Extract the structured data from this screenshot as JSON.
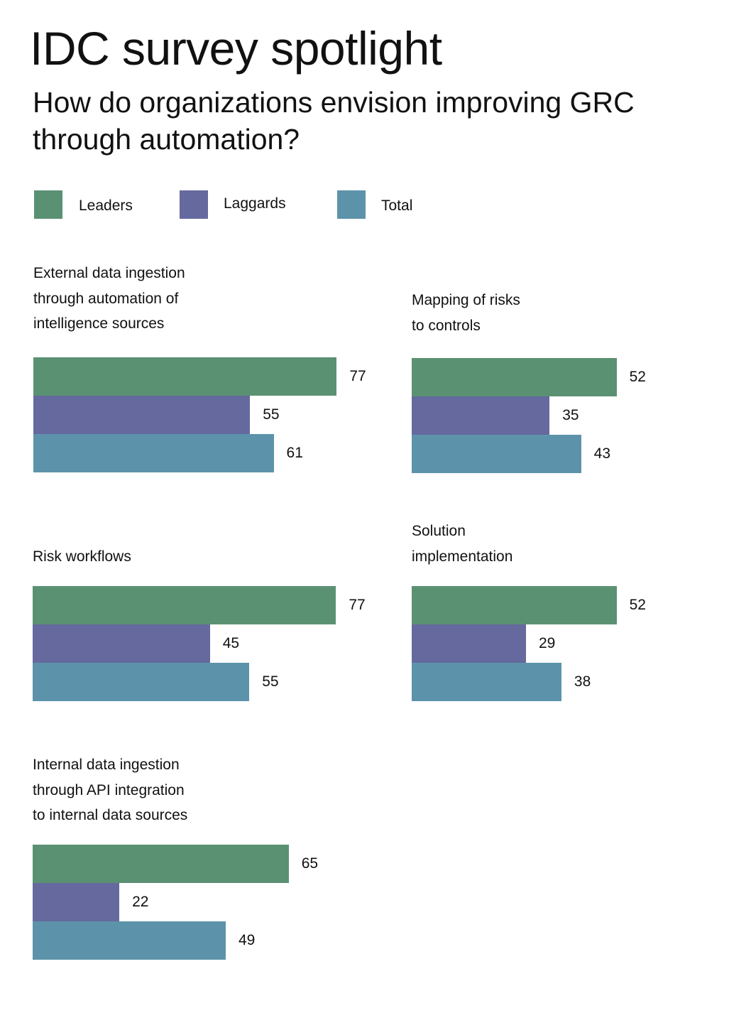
{
  "header": {
    "title": "IDC survey spotlight",
    "subtitle": "How do organizations envision improving GRC through automation?"
  },
  "legend": [
    {
      "label": "Leaders",
      "color": "#5b9173"
    },
    {
      "label": "Laggards",
      "color": "#65699e"
    },
    {
      "label": "Total",
      "color": "#5d93aa"
    }
  ],
  "chart_data": [
    {
      "type": "bar",
      "orientation": "horizontal",
      "title_lines": [
        "External data ingestion",
        "through automation of",
        "intelligence sources"
      ],
      "categories": [
        "Leaders",
        "Laggards",
        "Total"
      ],
      "values": [
        77,
        55,
        61
      ]
    },
    {
      "type": "bar",
      "orientation": "horizontal",
      "title_lines": [
        "Mapping of risks",
        "to controls"
      ],
      "categories": [
        "Leaders",
        "Laggards",
        "Total"
      ],
      "values": [
        52,
        35,
        43
      ]
    },
    {
      "type": "bar",
      "orientation": "horizontal",
      "title_lines": [
        "Risk workflows"
      ],
      "categories": [
        "Leaders",
        "Laggards",
        "Total"
      ],
      "values": [
        77,
        45,
        55
      ]
    },
    {
      "type": "bar",
      "orientation": "horizontal",
      "title_lines": [
        "Solution",
        "implementation"
      ],
      "categories": [
        "Leaders",
        "Laggards",
        "Total"
      ],
      "values": [
        52,
        29,
        38
      ]
    },
    {
      "type": "bar",
      "orientation": "horizontal",
      "title_lines": [
        "Internal data ingestion",
        "through API integration",
        "to internal data sources"
      ],
      "categories": [
        "Leaders",
        "Laggards",
        "Total"
      ],
      "values": [
        65,
        22,
        49
      ]
    }
  ]
}
